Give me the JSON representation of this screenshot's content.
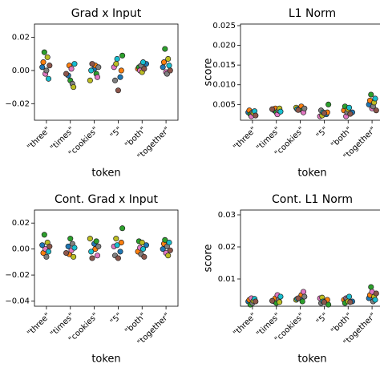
{
  "chart_data": [
    {
      "type": "strip",
      "title": "Grad x Input",
      "x_label": "token",
      "categories": [
        "\"three\"",
        "\"times\"",
        "\"cookies\"",
        "\"5\"",
        "\"both\"",
        "\"together\""
      ],
      "ylim": [
        -0.03,
        0.028
      ],
      "yticks": [
        0.02,
        {
          "value": 0,
          "label": "0.00"
        },
        {
          "value": -0.02,
          "label": "−0.02"
        }
      ],
      "series": [
        {
          "color": "#1f77b4",
          "values": [
            0.002,
            -0.003,
            0.001,
            -0.004,
            0.004,
            0.002
          ]
        },
        {
          "color": "#ff7f0e",
          "values": [
            0.005,
            0.003,
            0.003,
            0.0,
            0.001,
            0.005
          ]
        },
        {
          "color": "#2ca02c",
          "values": [
            0.011,
            -0.006,
            -0.002,
            0.009,
            0.002,
            0.013
          ]
        },
        {
          "color": "#e377c2",
          "values": [
            -0.002,
            0.001,
            -0.004,
            0.002,
            0.0,
            -0.001
          ]
        },
        {
          "color": "#7f7f7f",
          "values": [
            0.0,
            -0.008,
            0.002,
            -0.006,
            0.003,
            -0.002
          ]
        },
        {
          "color": "#bcbd22",
          "values": [
            0.008,
            -0.01,
            -0.006,
            0.004,
            -0.001,
            0.007
          ]
        },
        {
          "color": "#17becf",
          "values": [
            -0.005,
            0.004,
            0.0,
            0.007,
            0.005,
            0.003
          ]
        },
        {
          "color": "#8c564b",
          "values": [
            0.003,
            -0.002,
            0.004,
            -0.012,
            0.001,
            0.0
          ]
        }
      ]
    },
    {
      "type": "strip",
      "title": "L1 Norm",
      "x_label": "token",
      "y_label": "score",
      "categories": [
        "\"three\"",
        "\"times\"",
        "\"cookies\"",
        "\"5\"",
        "\"both\"",
        "\"together\""
      ],
      "ylim": [
        0.001,
        0.0254
      ],
      "yticks": [
        0.025,
        {
          "value": 0.02,
          "label": "0.020"
        },
        0.015,
        {
          "value": 0.01,
          "label": "0.010"
        },
        0.005
      ],
      "series": [
        {
          "color": "#1f77b4",
          "values": [
            0.003,
            0.0035,
            0.004,
            0.0025,
            0.003,
            0.005
          ]
        },
        {
          "color": "#ff7f0e",
          "values": [
            0.0035,
            0.004,
            0.0045,
            0.003,
            0.0035,
            0.006
          ]
        },
        {
          "color": "#2ca02c",
          "values": [
            0.0025,
            0.003,
            0.0035,
            0.005,
            0.0045,
            0.0075
          ]
        },
        {
          "color": "#e377c2",
          "values": [
            0.002,
            0.0025,
            0.003,
            0.002,
            0.002,
            0.004
          ]
        },
        {
          "color": "#7f7f7f",
          "values": [
            0.003,
            0.0035,
            0.004,
            0.0035,
            0.003,
            0.0045
          ]
        },
        {
          "color": "#bcbd22",
          "values": [
            0.0028,
            0.004,
            0.0042,
            0.0022,
            0.0038,
            0.0055
          ]
        },
        {
          "color": "#17becf",
          "values": [
            0.0033,
            0.0032,
            0.0038,
            0.003,
            0.0042,
            0.0065
          ]
        },
        {
          "color": "#8c564b",
          "values": [
            0.0022,
            0.0038,
            0.0036,
            0.0028,
            0.0026,
            0.0035
          ]
        }
      ]
    },
    {
      "type": "strip",
      "title": "Cont. Grad x Input",
      "x_label": "token",
      "categories": [
        "\"three\"",
        "\"times\"",
        "\"cookies\"",
        "\"5\"",
        "\"both\"",
        "\"together\""
      ],
      "ylim": [
        -0.044,
        0.03
      ],
      "yticks": [
        0.02,
        {
          "value": 0,
          "label": "0.00"
        },
        {
          "value": -0.02,
          "label": "−0.02"
        },
        {
          "value": -0.04,
          "label": "−0.04"
        }
      ],
      "series": [
        {
          "color": "#1f77b4",
          "values": [
            0.003,
            0.002,
            0.004,
            -0.002,
            0.003,
            0.0
          ]
        },
        {
          "color": "#ff7f0e",
          "values": [
            -0.003,
            -0.004,
            0.0,
            0.005,
            -0.002,
            0.004
          ]
        },
        {
          "color": "#2ca02c",
          "values": [
            0.011,
            0.008,
            0.006,
            0.016,
            0.006,
            0.007
          ]
        },
        {
          "color": "#e377c2",
          "values": [
            0.0,
            -0.001,
            -0.005,
            0.002,
            0.001,
            -0.003
          ]
        },
        {
          "color": "#7f7f7f",
          "values": [
            -0.006,
            0.004,
            0.002,
            -0.005,
            -0.004,
            0.002
          ]
        },
        {
          "color": "#bcbd22",
          "values": [
            0.005,
            -0.006,
            0.008,
            0.008,
            0.005,
            -0.005
          ]
        },
        {
          "color": "#17becf",
          "values": [
            -0.002,
            0.001,
            -0.002,
            0.003,
            0.0,
            0.005
          ]
        },
        {
          "color": "#8c564b",
          "values": [
            0.002,
            -0.003,
            -0.007,
            -0.007,
            -0.006,
            -0.001
          ]
        }
      ]
    },
    {
      "type": "strip",
      "title": "Cont. L1 Norm",
      "x_label": "token",
      "y_label": "score",
      "categories": [
        "\"three\"",
        "\"times\"",
        "\"cookies\"",
        "\"5\"",
        "\"both\"",
        "\"together\""
      ],
      "ylim": [
        0.0015,
        0.0315
      ],
      "yticks": [
        0.03,
        0.02,
        0.01
      ],
      "series": [
        {
          "color": "#1f77b4",
          "values": [
            0.003,
            0.003,
            0.004,
            0.003,
            0.003,
            0.004
          ]
        },
        {
          "color": "#ff7f0e",
          "values": [
            0.0035,
            0.004,
            0.005,
            0.0035,
            0.0035,
            0.005
          ]
        },
        {
          "color": "#2ca02c",
          "values": [
            0.002,
            0.0025,
            0.003,
            0.002,
            0.0025,
            0.0075
          ]
        },
        {
          "color": "#e377c2",
          "values": [
            0.004,
            0.005,
            0.006,
            0.004,
            0.004,
            0.006
          ]
        },
        {
          "color": "#7f7f7f",
          "values": [
            0.0025,
            0.0035,
            0.0045,
            0.0025,
            0.0038,
            0.003
          ]
        },
        {
          "color": "#bcbd22",
          "values": [
            0.0032,
            0.0028,
            0.0035,
            0.0042,
            0.003,
            0.0045
          ]
        },
        {
          "color": "#17becf",
          "values": [
            0.0038,
            0.0045,
            0.0038,
            0.003,
            0.0045,
            0.0035
          ]
        },
        {
          "color": "#8c564b",
          "values": [
            0.003,
            0.0032,
            0.004,
            0.0028,
            0.0028,
            0.0055
          ]
        }
      ]
    }
  ]
}
